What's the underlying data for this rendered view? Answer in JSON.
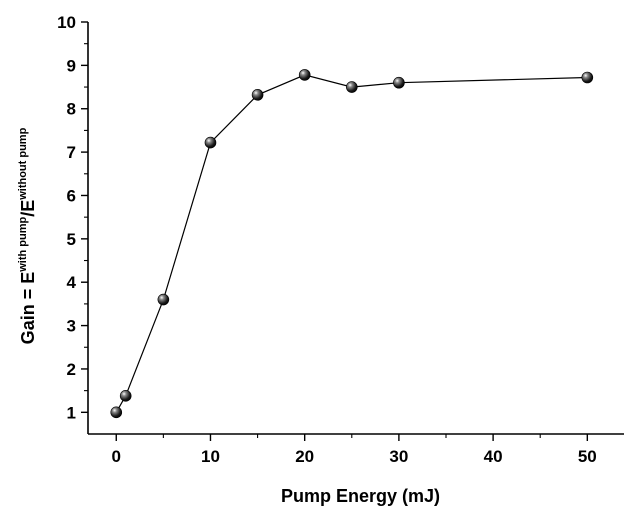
{
  "chart_data": {
    "type": "line",
    "title": "",
    "xlabel": "Pump Energy (mJ)",
    "ylabel": {
      "base": "Gain = E",
      "sup1": "with pump",
      "mid": "/E",
      "sup2": "without pump"
    },
    "xlim": [
      -3,
      54
    ],
    "ylim": [
      0.5,
      10
    ],
    "x_ticks": [
      0,
      10,
      20,
      30,
      40,
      50
    ],
    "y_ticks": [
      1,
      2,
      3,
      4,
      5,
      6,
      7,
      8,
      9,
      10
    ],
    "x_minor_ticks": [
      5,
      15,
      25,
      35,
      45
    ],
    "y_minor_ticks": [
      1.5,
      2.5,
      3.5,
      4.5,
      5.5,
      6.5,
      7.5,
      8.5,
      9.5
    ],
    "grid": false,
    "legend": "none",
    "series": [
      {
        "x": [
          0,
          1,
          5,
          10,
          15,
          20,
          25,
          30,
          50
        ],
        "y": [
          1.0,
          1.38,
          3.6,
          7.22,
          8.32,
          8.78,
          8.5,
          8.6,
          8.72
        ],
        "marker": "sphere",
        "color": "#000000"
      }
    ]
  }
}
